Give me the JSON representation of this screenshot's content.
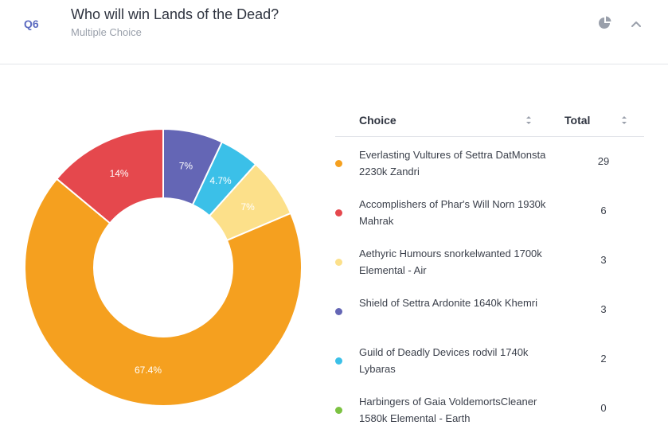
{
  "question": {
    "number": "Q6",
    "title": "Who will win Lands of the Dead?",
    "type": "Multiple Choice"
  },
  "icons": {
    "chart_toggle": "pie-chart-icon",
    "collapse": "chevron-up-icon",
    "sort": "sort-icon"
  },
  "table": {
    "choice_header": "Choice",
    "total_header": "Total",
    "rows": [
      {
        "label": "Everlasting Vultures of Settra DatMonsta 2230k Zandri",
        "total": "29",
        "color": "#f5a01f"
      },
      {
        "label": "Accomplishers of Phar's Will Norn 1930k Mahrak",
        "total": "6",
        "color": "#e5484d"
      },
      {
        "label": "Aethyric Humours snorkelwanted 1700k Elemental - Air",
        "total": "3",
        "color": "#fce08a"
      },
      {
        "label": "Shield of Settra Ardonite 1640k Khemri",
        "total": "3",
        "color": "#6466b5"
      },
      {
        "label": "Guild of Deadly Devices rodvil 1740k Lybaras",
        "total": "2",
        "color": "#3bc0e8"
      },
      {
        "label": "Harbingers of Gaia VoldemortsCleaner 1580k Elemental - Earth",
        "total": "0",
        "color": "#7cc242"
      }
    ]
  },
  "chart_data": {
    "type": "pie",
    "donut": true,
    "slices": [
      {
        "label": "67.4%",
        "value": 29,
        "color": "#f5a01f"
      },
      {
        "label": "14%",
        "value": 6,
        "color": "#e5484d"
      },
      {
        "label": "7%",
        "value": 3,
        "color": "#6466b5"
      },
      {
        "label": "4.7%",
        "value": 2,
        "color": "#3bc0e8"
      },
      {
        "label": "7%",
        "value": 3,
        "color": "#fce08a"
      }
    ],
    "order": "clockwise from top: 7%, 4.7%, 7%, 67.4%, 14%"
  }
}
